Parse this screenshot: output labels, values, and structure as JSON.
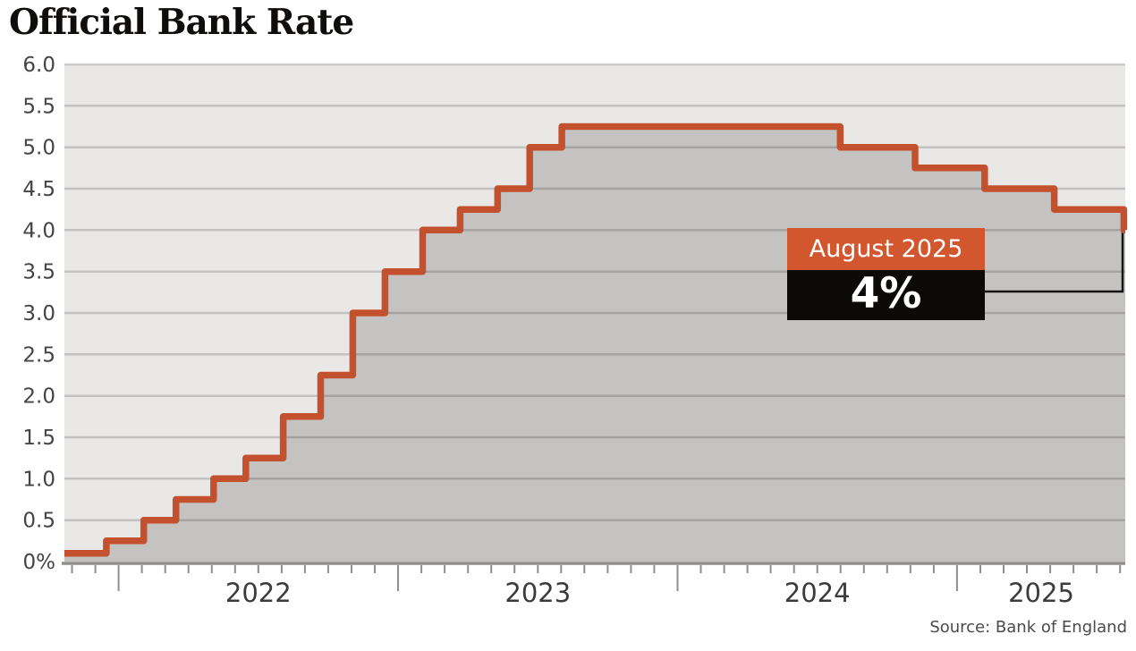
{
  "chart_data": {
    "type": "area",
    "subtype": "step",
    "title": "Official Bank Rate",
    "source": "Source: Bank of England",
    "unit": "%",
    "ylim": [
      0,
      6
    ],
    "x_domain": [
      2021.806,
      2025.602
    ],
    "x_tick_years": [
      2022,
      2023,
      2024,
      2025
    ],
    "y_ticks": [
      {
        "v": 6.0,
        "label": "6.0"
      },
      {
        "v": 5.5,
        "label": "5.5"
      },
      {
        "v": 5.0,
        "label": "5.0"
      },
      {
        "v": 4.5,
        "label": "4.5"
      },
      {
        "v": 4.0,
        "label": "4.0"
      },
      {
        "v": 3.5,
        "label": "3.5"
      },
      {
        "v": 3.0,
        "label": "3.0"
      },
      {
        "v": 2.5,
        "label": "2.5"
      },
      {
        "v": 2.0,
        "label": "2.0"
      },
      {
        "v": 1.5,
        "label": "1.5"
      },
      {
        "v": 1.0,
        "label": "1.0"
      },
      {
        "v": 0.5,
        "label": "0.5"
      },
      {
        "v": 0.0,
        "label": "0%"
      }
    ],
    "steps": [
      {
        "date": "Oct 2021",
        "t": 2021.806,
        "rate": 0.1
      },
      {
        "date": "Dec 2021",
        "t": 2021.956,
        "rate": 0.25
      },
      {
        "date": "Feb 2022",
        "t": 2022.09,
        "rate": 0.5
      },
      {
        "date": "Mar 2022",
        "t": 2022.205,
        "rate": 0.75
      },
      {
        "date": "May 2022",
        "t": 2022.34,
        "rate": 1.0
      },
      {
        "date": "Jun 2022",
        "t": 2022.455,
        "rate": 1.25
      },
      {
        "date": "Aug 2022",
        "t": 2022.589,
        "rate": 1.75
      },
      {
        "date": "Sep 2022",
        "t": 2022.723,
        "rate": 2.25
      },
      {
        "date": "Nov 2022",
        "t": 2022.838,
        "rate": 3.0
      },
      {
        "date": "Dec 2022",
        "t": 2022.953,
        "rate": 3.5
      },
      {
        "date": "Feb 2023",
        "t": 2023.088,
        "rate": 4.0
      },
      {
        "date": "Mar 2023",
        "t": 2023.222,
        "rate": 4.25
      },
      {
        "date": "May 2023",
        "t": 2023.356,
        "rate": 4.5
      },
      {
        "date": "Jun 2023",
        "t": 2023.471,
        "rate": 5.0
      },
      {
        "date": "Aug 2023",
        "t": 2023.586,
        "rate": 5.25
      },
      {
        "date": "Aug 2024",
        "t": 2024.582,
        "rate": 5.0
      },
      {
        "date": "Nov 2024",
        "t": 2024.85,
        "rate": 4.75
      },
      {
        "date": "Feb 2025",
        "t": 2025.099,
        "rate": 4.5
      },
      {
        "date": "May 2025",
        "t": 2025.348,
        "rate": 4.25
      },
      {
        "date": "Aug 2025",
        "t": 2025.597,
        "rate": 4.0
      }
    ],
    "annotation": {
      "label": "August 2025",
      "value": "4%",
      "rate": 4.0
    },
    "legend": null,
    "grid": true,
    "colors": {
      "line": "#c4512d",
      "fill": "#c4c3c1",
      "plot_bg": "#e9e8e7",
      "grid": "rgba(0,0,0,0.16)",
      "axis": "#8f8e8c",
      "tick_text": "#3c3b3a",
      "annotation_header_bg": "#d2572f",
      "annotation_value_bg": "#0b0a09",
      "connector": "#141414",
      "title_text": "#0e0d0c",
      "source_text": "#4b4a49"
    }
  }
}
